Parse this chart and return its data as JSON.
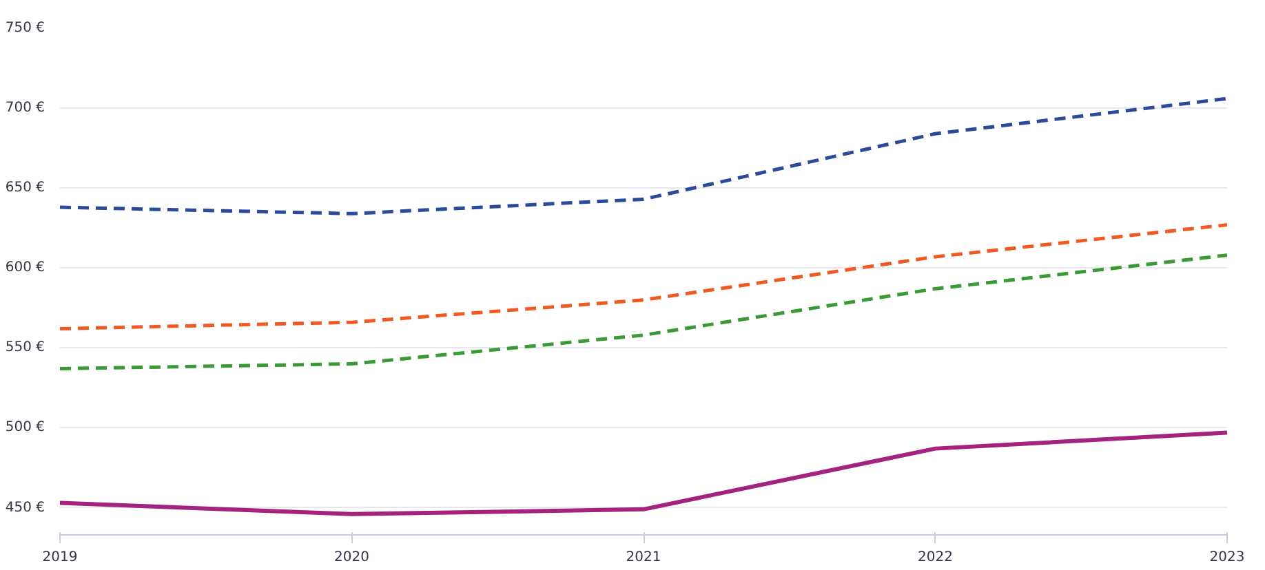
{
  "chart_data": {
    "type": "line",
    "x": [
      2019,
      2020,
      2021,
      2022,
      2023
    ],
    "xlim": [
      2019,
      2023
    ],
    "xticks": [
      2019,
      2020,
      2021,
      2022,
      2023
    ],
    "ylim": [
      433,
      750
    ],
    "yticks": [
      {
        "value": 450,
        "label": "450 €"
      },
      {
        "value": 500,
        "label": "500 €"
      },
      {
        "value": 550,
        "label": "550 €"
      },
      {
        "value": 600,
        "label": "600 €"
      },
      {
        "value": 650,
        "label": "650 €"
      },
      {
        "value": 700,
        "label": "700 €"
      },
      {
        "value": 750,
        "label": "750 €"
      }
    ],
    "grid": "y",
    "series": [
      {
        "color": "#2b4a9a",
        "line_style": "dashed",
        "values": [
          638,
          634,
          643,
          684,
          706
        ]
      },
      {
        "color": "#f05a22",
        "line_style": "dashed",
        "values": [
          562,
          566,
          580,
          607,
          627
        ]
      },
      {
        "color": "#3a9a35",
        "line_style": "dashed",
        "values": [
          537,
          540,
          558,
          587,
          608
        ]
      },
      {
        "color": "#a3237f",
        "line_style": "solid",
        "values": [
          453,
          446,
          449,
          487,
          497
        ]
      }
    ]
  }
}
